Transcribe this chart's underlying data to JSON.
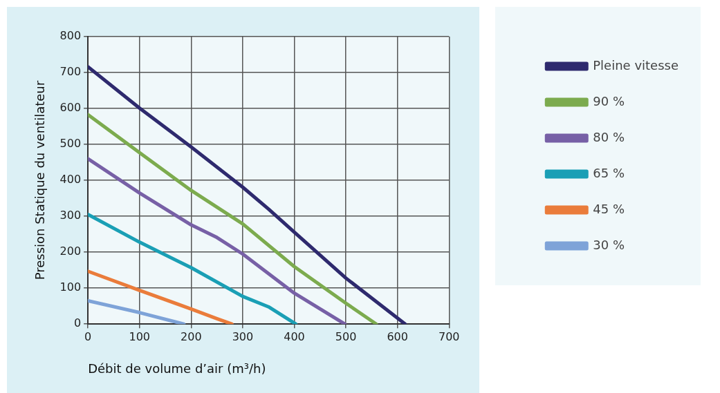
{
  "chart_data": {
    "type": "line",
    "xlabel": "Débit de volume d’air (m³/h)",
    "ylabel": "Pression Statique du ventilateur",
    "xlim": [
      0,
      700
    ],
    "xticks": [
      0,
      100,
      200,
      300,
      400,
      500,
      600,
      700
    ],
    "ylim": [
      0,
      800
    ],
    "yticks": [
      0,
      100,
      200,
      300,
      400,
      500,
      600,
      700,
      800
    ],
    "grid": true,
    "legend": "right",
    "marker": "none",
    "line_style": "solid",
    "series": [
      {
        "name": "Pleine vitesse",
        "color": "#2e2a6e",
        "x": [
          0,
          100,
          200,
          300,
          350,
          400,
          500,
          615
        ],
        "values": [
          716,
          601,
          493,
          381,
          320,
          256,
          128,
          0
        ]
      },
      {
        "name": "90 %",
        "color": "#7cab4e",
        "x": [
          0,
          100,
          200,
          300,
          400,
          500,
          559
        ],
        "values": [
          583,
          477,
          372,
          279,
          160,
          58,
          0
        ]
      },
      {
        "name": "80 %",
        "color": "#7760a6",
        "x": [
          0,
          100,
          200,
          250,
          300,
          400,
          498
        ],
        "values": [
          460,
          365,
          276,
          241,
          195,
          86,
          0
        ]
      },
      {
        "name": "65 %",
        "color": "#1a9fb5",
        "x": [
          0,
          100,
          200,
          300,
          350,
          403
        ],
        "values": [
          305,
          228,
          157,
          77,
          48,
          0
        ]
      },
      {
        "name": "45 %",
        "color": "#ea7c3b",
        "x": [
          0,
          100,
          200,
          250,
          279
        ],
        "values": [
          147,
          94,
          42,
          15,
          0
        ]
      },
      {
        "name": "30 %",
        "color": "#7ea3d8",
        "x": [
          0,
          100,
          186
        ],
        "values": [
          65,
          32,
          0
        ]
      }
    ]
  }
}
